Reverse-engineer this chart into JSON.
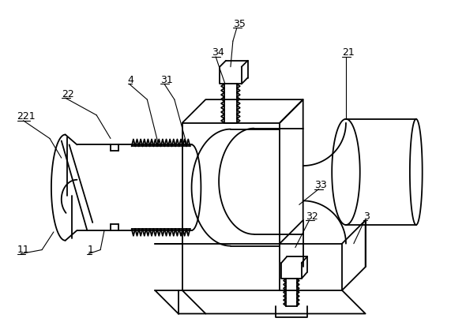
{
  "line_color": "#000000",
  "bg_color": "#ffffff",
  "lw": 1.3,
  "fig_width": 5.71,
  "fig_height": 4.22,
  "dpi": 100
}
